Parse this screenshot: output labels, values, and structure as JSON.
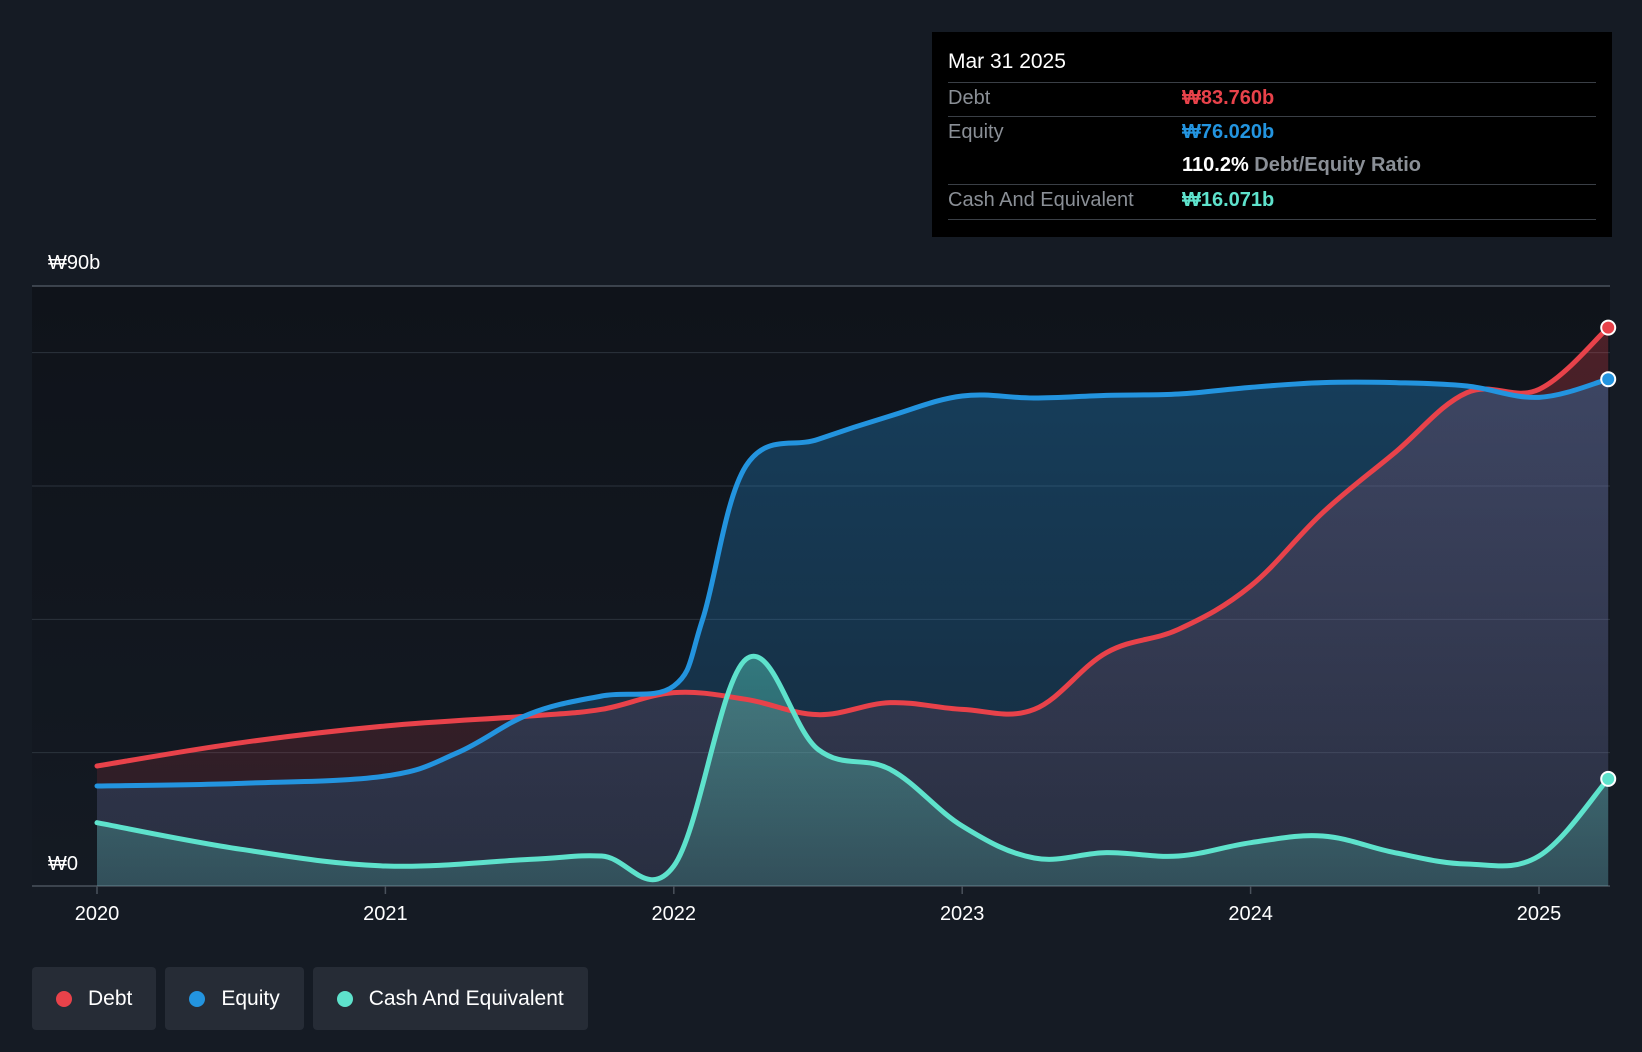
{
  "chart_data": {
    "type": "area",
    "title": "",
    "ylabel_top": "₩90b",
    "ylabel_bottom": "₩0",
    "ylim": [
      0,
      90
    ],
    "xlim": [
      2019.78,
      2025.24
    ],
    "x_ticks": [
      {
        "value": 2020,
        "label": "2020"
      },
      {
        "value": 2021,
        "label": "2021"
      },
      {
        "value": 2022,
        "label": "2022"
      },
      {
        "value": 2023,
        "label": "2023"
      },
      {
        "value": 2024,
        "label": "2024"
      },
      {
        "value": 2025,
        "label": "2025"
      }
    ],
    "grid_values": [
      0,
      20,
      40,
      60,
      80,
      90
    ],
    "series": [
      {
        "name": "Debt",
        "color": "#e8424a",
        "points": [
          [
            2020,
            18.0
          ],
          [
            2020.5,
            21.5
          ],
          [
            2021,
            24.0
          ],
          [
            2021.5,
            25.5
          ],
          [
            2021.75,
            26.5
          ],
          [
            2022,
            29.0
          ],
          [
            2022.25,
            28.0
          ],
          [
            2022.5,
            25.7
          ],
          [
            2022.75,
            27.5
          ],
          [
            2023,
            26.5
          ],
          [
            2023.25,
            26.5
          ],
          [
            2023.5,
            35.0
          ],
          [
            2023.75,
            38.5
          ],
          [
            2024,
            45.0
          ],
          [
            2024.25,
            56.0
          ],
          [
            2024.5,
            65.0
          ],
          [
            2024.75,
            74.0
          ],
          [
            2025,
            74.5
          ],
          [
            2025.24,
            83.76
          ]
        ]
      },
      {
        "name": "Equity",
        "color": "#2394df",
        "points": [
          [
            2020,
            15.0
          ],
          [
            2020.5,
            15.4
          ],
          [
            2021,
            16.5
          ],
          [
            2021.25,
            20.0
          ],
          [
            2021.5,
            25.8
          ],
          [
            2021.75,
            28.5
          ],
          [
            2022,
            30.0
          ],
          [
            2022.1,
            40.0
          ],
          [
            2022.25,
            63.0
          ],
          [
            2022.5,
            67.0
          ],
          [
            2022.75,
            70.5
          ],
          [
            2023,
            73.5
          ],
          [
            2023.25,
            73.2
          ],
          [
            2023.5,
            73.6
          ],
          [
            2023.75,
            73.8
          ],
          [
            2024,
            74.8
          ],
          [
            2024.25,
            75.5
          ],
          [
            2024.5,
            75.5
          ],
          [
            2024.75,
            75.0
          ],
          [
            2025,
            73.3
          ],
          [
            2025.24,
            76.02
          ]
        ]
      },
      {
        "name": "Cash And Equivalent",
        "color": "#5ee2cc",
        "points": [
          [
            2020,
            9.5
          ],
          [
            2020.5,
            5.5
          ],
          [
            2021,
            3.0
          ],
          [
            2021.5,
            4.0
          ],
          [
            2021.75,
            4.5
          ],
          [
            2022,
            3.0
          ],
          [
            2022.25,
            34.0
          ],
          [
            2022.5,
            20.5
          ],
          [
            2022.75,
            17.5
          ],
          [
            2023,
            9.0
          ],
          [
            2023.25,
            4.2
          ],
          [
            2023.5,
            5.0
          ],
          [
            2023.75,
            4.5
          ],
          [
            2024,
            6.5
          ],
          [
            2024.25,
            7.5
          ],
          [
            2024.5,
            5.0
          ],
          [
            2024.75,
            3.3
          ],
          [
            2025,
            4.5
          ],
          [
            2025.24,
            16.071
          ]
        ]
      }
    ]
  },
  "tooltip": {
    "date": "Mar 31 2025",
    "debt_label": "Debt",
    "debt_value": "₩83.760b",
    "equity_label": "Equity",
    "equity_value": "₩76.020b",
    "ratio_value": "110.2%",
    "ratio_label": "Debt/Equity Ratio",
    "cash_label": "Cash And Equivalent",
    "cash_value": "₩16.071b"
  },
  "legend": [
    {
      "label": "Debt",
      "color": "#e8424a"
    },
    {
      "label": "Equity",
      "color": "#2394df"
    },
    {
      "label": "Cash And Equivalent",
      "color": "#5ee2cc"
    }
  ]
}
